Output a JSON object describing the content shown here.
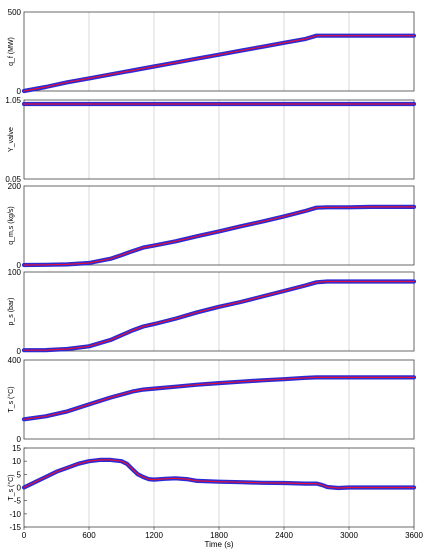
{
  "chart_data": [
    {
      "type": "line",
      "ylabel": "q_f (MW)",
      "ylim": [
        0,
        500
      ],
      "yticks": [
        0,
        500
      ],
      "grid": "vertical",
      "series_colors": [
        "#2b2bd6",
        "#e0113a"
      ],
      "x": [
        0,
        200,
        400,
        600,
        800,
        1000,
        1200,
        1400,
        1600,
        1800,
        2000,
        2200,
        2400,
        2600,
        2700,
        2800,
        3000,
        3200,
        3400,
        3600
      ],
      "y": [
        0,
        25,
        55,
        80,
        105,
        130,
        155,
        180,
        205,
        230,
        255,
        280,
        305,
        330,
        350,
        350,
        350,
        350,
        350,
        350
      ]
    },
    {
      "type": "line",
      "ylabel": "Y_valve",
      "ylim": [
        0.05,
        1.05
      ],
      "yticks": [
        0.05,
        1.05
      ],
      "grid": "vertical",
      "series_colors": [
        "#2b2bd6",
        "#e0113a"
      ],
      "x": [
        0,
        600,
        1200,
        1800,
        2400,
        3000,
        3600
      ],
      "y": [
        1.0,
        1.0,
        1.0,
        1.0,
        1.0,
        1.0,
        1.0
      ]
    },
    {
      "type": "line",
      "ylabel": "q_m,s (kg/s)",
      "ylim": [
        0,
        200
      ],
      "yticks": [
        0,
        200
      ],
      "grid": "vertical",
      "series_colors": [
        "#2b2bd6",
        "#e0113a"
      ],
      "x": [
        0,
        200,
        400,
        600,
        800,
        900,
        1000,
        1100,
        1200,
        1400,
        1600,
        1800,
        2000,
        2200,
        2400,
        2600,
        2700,
        2800,
        3000,
        3200,
        3400,
        3600
      ],
      "y": [
        0,
        0.5,
        1.5,
        5,
        16,
        25,
        35,
        44,
        49,
        60,
        73,
        85,
        98,
        110,
        123,
        137,
        145,
        146,
        146,
        147,
        147,
        147
      ]
    },
    {
      "type": "line",
      "ylabel": "p_s (bar)",
      "ylim": [
        0,
        100
      ],
      "yticks": [
        0,
        100
      ],
      "grid": "vertical",
      "series_colors": [
        "#2b2bd6",
        "#e0113a"
      ],
      "x": [
        0,
        200,
        400,
        600,
        800,
        900,
        1000,
        1100,
        1200,
        1400,
        1600,
        1800,
        2000,
        2200,
        2400,
        2600,
        2700,
        2800,
        3000,
        3200,
        3400,
        3600
      ],
      "y": [
        1,
        1.2,
        2.5,
        6,
        14,
        20,
        26,
        31,
        34,
        41,
        49,
        56,
        62,
        69,
        76,
        83,
        87,
        88,
        88,
        88,
        88,
        88
      ]
    },
    {
      "type": "line",
      "ylabel": "T_s (°C)",
      "ylim": [
        0,
        400
      ],
      "yticks": [
        0,
        400
      ],
      "grid": "vertical",
      "series_colors": [
        "#2b2bd6",
        "#e0113a"
      ],
      "x": [
        0,
        200,
        400,
        600,
        800,
        1000,
        1100,
        1200,
        1400,
        1600,
        1800,
        2000,
        2200,
        2400,
        2600,
        2700,
        2800,
        3000,
        3200,
        3400,
        3600
      ],
      "y": [
        100,
        115,
        140,
        175,
        210,
        240,
        250,
        255,
        265,
        275,
        283,
        290,
        297,
        303,
        310,
        312,
        312,
        312,
        312,
        312,
        312
      ]
    },
    {
      "type": "line",
      "ylabel": "T_s (°C)",
      "xlabel": "Time (s)",
      "ylim": [
        -15,
        15
      ],
      "yticks": [
        -15,
        -10,
        -5,
        0,
        5,
        10,
        15
      ],
      "xticks": [
        0,
        600,
        1200,
        1800,
        2400,
        3000,
        3600
      ],
      "grid": "vertical",
      "series_colors": [
        "#2b2bd6",
        "#e0113a"
      ],
      "x": [
        0,
        100,
        200,
        300,
        400,
        500,
        600,
        700,
        800,
        900,
        950,
        1000,
        1050,
        1100,
        1150,
        1200,
        1300,
        1400,
        1500,
        1600,
        1800,
        2000,
        2200,
        2400,
        2600,
        2700,
        2750,
        2800,
        2900,
        3000,
        3200,
        3400,
        3600
      ],
      "y": [
        0,
        2,
        4,
        6,
        7.5,
        9,
        10,
        10.5,
        10.5,
        10,
        9,
        7,
        5,
        4,
        3.2,
        3,
        3.3,
        3.5,
        3.2,
        2.5,
        2.2,
        2.0,
        1.8,
        1.7,
        1.5,
        1.5,
        1.0,
        0.2,
        -0.2,
        0,
        0,
        0,
        0
      ]
    }
  ]
}
